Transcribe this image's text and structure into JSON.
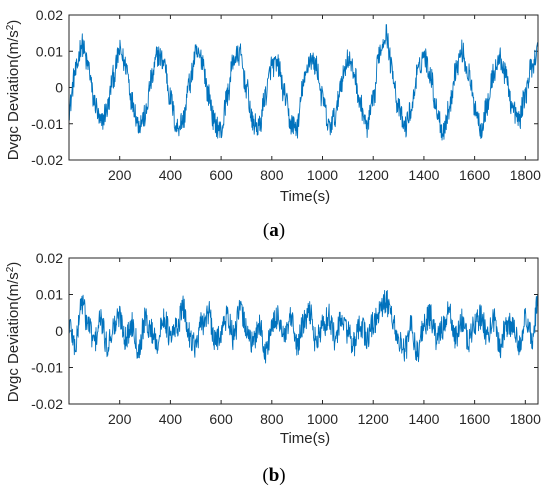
{
  "colors": {
    "line": "#0072BD",
    "axis": "#262626",
    "background": "#ffffff"
  },
  "chart_data": [
    {
      "type": "line",
      "panel_label": "a",
      "xlabel": "Time(s)",
      "ylabel_main": "Dvgc Deviation(m/s",
      "ylabel_sup": "2",
      "ylabel_close": ")",
      "xlim": [
        0,
        1850
      ],
      "ylim": [
        -0.02,
        0.02
      ],
      "xticks": [
        200,
        400,
        600,
        800,
        1000,
        1200,
        1400,
        1600,
        1800
      ],
      "xtick_labels": [
        "200",
        "400",
        "600",
        "800",
        "1000",
        "1200",
        "1400",
        "1600",
        "1800"
      ],
      "yticks": [
        -0.02,
        -0.01,
        0,
        0.01,
        0.02
      ],
      "ytick_labels": [
        "-0.02",
        "-0.01",
        "0",
        "0.01",
        "0.02"
      ],
      "grid": false,
      "series": [
        {
          "x": [
            0,
            25,
            50,
            75,
            100,
            125,
            150,
            175,
            200,
            225,
            250,
            275,
            300,
            325,
            350,
            375,
            400,
            425,
            450,
            475,
            500,
            525,
            550,
            575,
            600,
            625,
            650,
            675,
            700,
            725,
            750,
            775,
            800,
            825,
            850,
            875,
            900,
            925,
            950,
            975,
            1000,
            1025,
            1050,
            1075,
            1100,
            1125,
            1150,
            1175,
            1200,
            1225,
            1250,
            1275,
            1300,
            1325,
            1350,
            1375,
            1400,
            1425,
            1450,
            1475,
            1500,
            1525,
            1550,
            1575,
            1600,
            1625,
            1650,
            1675,
            1700,
            1725,
            1750,
            1775,
            1800,
            1825,
            1850
          ],
          "y": [
            -0.006,
            0.004,
            0.012,
            0.006,
            -0.004,
            -0.01,
            -0.006,
            0.003,
            0.01,
            0.006,
            -0.004,
            -0.01,
            -0.008,
            0.002,
            0.009,
            0.007,
            -0.003,
            -0.011,
            -0.009,
            0.001,
            0.009,
            0.008,
            -0.002,
            -0.01,
            -0.012,
            -0.002,
            0.008,
            0.009,
            0.0,
            -0.01,
            -0.011,
            -0.002,
            0.006,
            0.006,
            -0.002,
            -0.01,
            -0.011,
            0.001,
            0.008,
            0.006,
            -0.003,
            -0.011,
            -0.008,
            0.002,
            0.008,
            0.004,
            -0.005,
            -0.011,
            -0.004,
            0.01,
            0.015,
            0.005,
            -0.006,
            -0.011,
            -0.006,
            0.004,
            0.009,
            0.004,
            -0.006,
            -0.012,
            -0.006,
            0.005,
            0.01,
            0.004,
            -0.005,
            -0.011,
            -0.005,
            0.004,
            0.008,
            0.003,
            -0.006,
            -0.009,
            -0.002,
            0.006,
            0.01
          ]
        }
      ]
    },
    {
      "type": "line",
      "panel_label": "b",
      "xlabel": "Time(s)",
      "ylabel_main": "Dvgc Deviation(m/s",
      "ylabel_sup": "2",
      "ylabel_close": ")",
      "xlim": [
        0,
        1850
      ],
      "ylim": [
        -0.02,
        0.02
      ],
      "xticks": [
        200,
        400,
        600,
        800,
        1000,
        1200,
        1400,
        1600,
        1800
      ],
      "xtick_labels": [
        "200",
        "400",
        "600",
        "800",
        "1000",
        "1200",
        "1400",
        "1600",
        "1800"
      ],
      "yticks": [
        -0.02,
        -0.01,
        0,
        0.01,
        0.02
      ],
      "ytick_labels": [
        "-0.02",
        "-0.01",
        "0",
        "0.01",
        "0.02"
      ],
      "grid": false,
      "series": [
        {
          "x": [
            0,
            25,
            50,
            75,
            100,
            125,
            150,
            175,
            200,
            225,
            250,
            275,
            300,
            325,
            350,
            375,
            400,
            425,
            450,
            475,
            500,
            525,
            550,
            575,
            600,
            625,
            650,
            675,
            700,
            725,
            750,
            775,
            800,
            825,
            850,
            875,
            900,
            925,
            950,
            975,
            1000,
            1025,
            1050,
            1075,
            1100,
            1125,
            1150,
            1175,
            1200,
            1225,
            1250,
            1275,
            1300,
            1325,
            1350,
            1375,
            1400,
            1425,
            1450,
            1475,
            1500,
            1525,
            1550,
            1575,
            1600,
            1625,
            1650,
            1675,
            1700,
            1725,
            1750,
            1775,
            1800,
            1825,
            1850
          ],
          "y": [
            0.002,
            -0.004,
            0.008,
            0.002,
            -0.003,
            0.003,
            -0.004,
            0.001,
            0.004,
            -0.002,
            0.002,
            -0.005,
            0.003,
            0.0,
            -0.003,
            0.004,
            -0.002,
            0.001,
            0.006,
            -0.001,
            -0.004,
            0.002,
            0.005,
            -0.003,
            0.0,
            0.004,
            -0.002,
            0.006,
            0.001,
            -0.004,
            0.002,
            -0.006,
            0.001,
            0.004,
            -0.002,
            0.003,
            -0.004,
            0.002,
            0.005,
            -0.003,
            0.001,
            0.004,
            -0.002,
            0.003,
            0.0,
            -0.004,
            0.002,
            -0.002,
            0.002,
            0.005,
            0.008,
            0.004,
            -0.003,
            -0.005,
            0.001,
            -0.006,
            0.002,
            0.004,
            -0.002,
            0.001,
            0.005,
            -0.002,
            0.003,
            -0.003,
            0.002,
            0.004,
            -0.001,
            0.003,
            -0.004,
            0.002,
            0.001,
            -0.003,
            0.003,
            -0.002,
            0.008
          ]
        }
      ]
    }
  ]
}
